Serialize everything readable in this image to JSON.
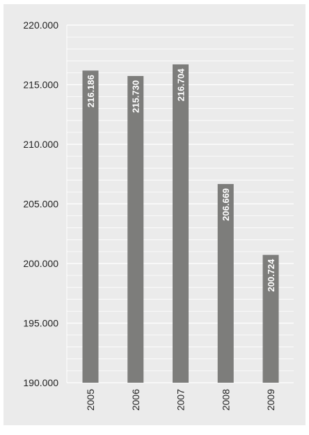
{
  "chart_data": {
    "type": "bar",
    "categories": [
      "2005",
      "2006",
      "2007",
      "2008",
      "2009"
    ],
    "values": [
      216186,
      215730,
      216704,
      206669,
      200724
    ],
    "value_labels": [
      "216.186",
      "215.730",
      "216.704",
      "206.669",
      "200.724"
    ],
    "y_ticks": [
      190000,
      195000,
      200000,
      205000,
      210000,
      215000,
      220000
    ],
    "y_tick_labels": [
      "190.000",
      "195.000",
      "200.000",
      "205.000",
      "210.000",
      "215.000",
      "220.000"
    ],
    "ylim": [
      190000,
      220000
    ],
    "minor_step": 1000,
    "grid": true,
    "title": "",
    "xlabel": "",
    "ylabel": "",
    "colors": {
      "background": "#ebebeb",
      "bar": "#7d7d7b",
      "grid": "#ffffff",
      "label_inside": "#ffffff",
      "text": "#222222"
    }
  }
}
